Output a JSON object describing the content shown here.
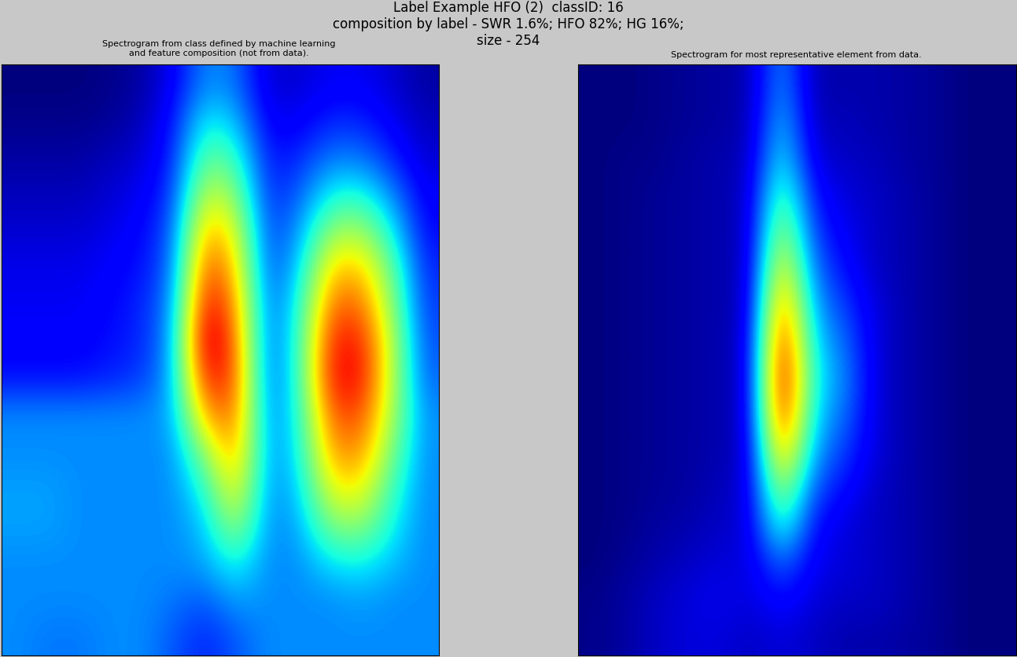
{
  "header": [
    "Label Example HFO (2)  classID: 16",
    "composition by label - SWR 1.6%; HFO 82%; HG 16%;",
    "size - 254"
  ],
  "chart_data": [
    {
      "type": "heatmap",
      "title": "Spectrogram from class defined by machine learning\nand feature composition (not from data).",
      "color": "jet",
      "tick_labels": false,
      "cells": [
        [
          0.05,
          0.05,
          0.05,
          0.06,
          0.08,
          0.15,
          0.3,
          0.28,
          0.12,
          0.12,
          0.15,
          0.15,
          0.12,
          0.08
        ],
        [
          0.06,
          0.06,
          0.06,
          0.07,
          0.1,
          0.18,
          0.4,
          0.35,
          0.15,
          0.15,
          0.2,
          0.2,
          0.15,
          0.1
        ],
        [
          0.08,
          0.08,
          0.08,
          0.1,
          0.12,
          0.2,
          0.5,
          0.45,
          0.18,
          0.2,
          0.28,
          0.28,
          0.2,
          0.12
        ],
        [
          0.1,
          0.1,
          0.1,
          0.12,
          0.15,
          0.22,
          0.62,
          0.55,
          0.2,
          0.25,
          0.4,
          0.42,
          0.3,
          0.15
        ],
        [
          0.12,
          0.12,
          0.12,
          0.14,
          0.17,
          0.25,
          0.75,
          0.65,
          0.22,
          0.3,
          0.55,
          0.58,
          0.4,
          0.17
        ],
        [
          0.14,
          0.14,
          0.14,
          0.16,
          0.18,
          0.27,
          0.85,
          0.72,
          0.23,
          0.35,
          0.7,
          0.72,
          0.5,
          0.2
        ],
        [
          0.15,
          0.15,
          0.15,
          0.17,
          0.2,
          0.3,
          0.93,
          0.78,
          0.25,
          0.4,
          0.8,
          0.82,
          0.55,
          0.22
        ],
        [
          0.16,
          0.16,
          0.16,
          0.18,
          0.2,
          0.32,
          1.0,
          0.82,
          0.25,
          0.42,
          0.88,
          0.9,
          0.6,
          0.24
        ],
        [
          0.18,
          0.18,
          0.18,
          0.2,
          0.22,
          0.33,
          0.9,
          0.85,
          0.25,
          0.42,
          0.9,
          0.92,
          0.6,
          0.26
        ],
        [
          0.3,
          0.3,
          0.3,
          0.3,
          0.3,
          0.32,
          0.75,
          0.82,
          0.28,
          0.4,
          0.82,
          0.85,
          0.58,
          0.3
        ],
        [
          0.3,
          0.3,
          0.3,
          0.3,
          0.3,
          0.3,
          0.55,
          0.78,
          0.3,
          0.38,
          0.75,
          0.78,
          0.52,
          0.3
        ],
        [
          0.32,
          0.32,
          0.3,
          0.3,
          0.3,
          0.3,
          0.42,
          0.7,
          0.3,
          0.35,
          0.65,
          0.68,
          0.45,
          0.3
        ],
        [
          0.32,
          0.32,
          0.3,
          0.3,
          0.3,
          0.3,
          0.35,
          0.58,
          0.3,
          0.32,
          0.52,
          0.55,
          0.4,
          0.3
        ],
        [
          0.3,
          0.3,
          0.3,
          0.3,
          0.3,
          0.3,
          0.32,
          0.42,
          0.3,
          0.3,
          0.38,
          0.4,
          0.35,
          0.3
        ],
        [
          0.3,
          0.3,
          0.3,
          0.3,
          0.3,
          0.28,
          0.25,
          0.32,
          0.3,
          0.3,
          0.3,
          0.32,
          0.3,
          0.3
        ],
        [
          0.3,
          0.28,
          0.28,
          0.3,
          0.3,
          0.25,
          0.2,
          0.25,
          0.3,
          0.3,
          0.3,
          0.3,
          0.3,
          0.3
        ]
      ]
    },
    {
      "type": "heatmap",
      "title": "Spectrogram for most representative element from data.",
      "color": "jet",
      "tick_labels": false,
      "cells": [
        [
          0.02,
          0.02,
          0.03,
          0.04,
          0.05,
          0.06,
          0.3,
          0.06,
          0.06,
          0.06,
          0.05,
          0.04,
          0.02,
          0.02
        ],
        [
          0.02,
          0.02,
          0.03,
          0.04,
          0.05,
          0.06,
          0.35,
          0.07,
          0.07,
          0.06,
          0.05,
          0.04,
          0.02,
          0.02
        ],
        [
          0.02,
          0.03,
          0.03,
          0.05,
          0.06,
          0.07,
          0.4,
          0.1,
          0.08,
          0.07,
          0.05,
          0.04,
          0.02,
          0.02
        ],
        [
          0.02,
          0.03,
          0.04,
          0.05,
          0.06,
          0.08,
          0.5,
          0.15,
          0.1,
          0.08,
          0.06,
          0.04,
          0.02,
          0.02
        ],
        [
          0.02,
          0.03,
          0.04,
          0.05,
          0.06,
          0.08,
          0.6,
          0.2,
          0.12,
          0.08,
          0.06,
          0.04,
          0.02,
          0.02
        ],
        [
          0.02,
          0.03,
          0.04,
          0.05,
          0.06,
          0.08,
          0.72,
          0.25,
          0.15,
          0.08,
          0.06,
          0.04,
          0.02,
          0.02
        ],
        [
          0.02,
          0.03,
          0.04,
          0.05,
          0.06,
          0.08,
          0.85,
          0.3,
          0.2,
          0.1,
          0.06,
          0.04,
          0.02,
          0.02
        ],
        [
          0.02,
          0.03,
          0.04,
          0.05,
          0.06,
          0.09,
          0.95,
          0.35,
          0.25,
          0.1,
          0.06,
          0.04,
          0.02,
          0.02
        ],
        [
          0.02,
          0.03,
          0.04,
          0.05,
          0.06,
          0.09,
          1.0,
          0.38,
          0.28,
          0.1,
          0.06,
          0.04,
          0.02,
          0.02
        ],
        [
          0.02,
          0.03,
          0.04,
          0.05,
          0.06,
          0.09,
          0.95,
          0.35,
          0.25,
          0.1,
          0.06,
          0.04,
          0.02,
          0.02
        ],
        [
          0.02,
          0.03,
          0.04,
          0.05,
          0.06,
          0.09,
          0.8,
          0.3,
          0.2,
          0.1,
          0.06,
          0.04,
          0.02,
          0.02
        ],
        [
          0.02,
          0.03,
          0.04,
          0.05,
          0.07,
          0.1,
          0.6,
          0.22,
          0.15,
          0.08,
          0.06,
          0.04,
          0.02,
          0.02
        ],
        [
          0.02,
          0.03,
          0.05,
          0.06,
          0.08,
          0.1,
          0.45,
          0.15,
          0.1,
          0.08,
          0.06,
          0.04,
          0.02,
          0.02
        ],
        [
          0.02,
          0.04,
          0.06,
          0.08,
          0.1,
          0.1,
          0.25,
          0.12,
          0.1,
          0.08,
          0.06,
          0.04,
          0.02,
          0.02
        ],
        [
          0.03,
          0.05,
          0.08,
          0.1,
          0.12,
          0.1,
          0.15,
          0.1,
          0.08,
          0.08,
          0.06,
          0.04,
          0.02,
          0.02
        ],
        [
          0.03,
          0.05,
          0.08,
          0.1,
          0.1,
          0.08,
          0.1,
          0.08,
          0.06,
          0.06,
          0.05,
          0.04,
          0.02,
          0.02
        ]
      ]
    }
  ]
}
